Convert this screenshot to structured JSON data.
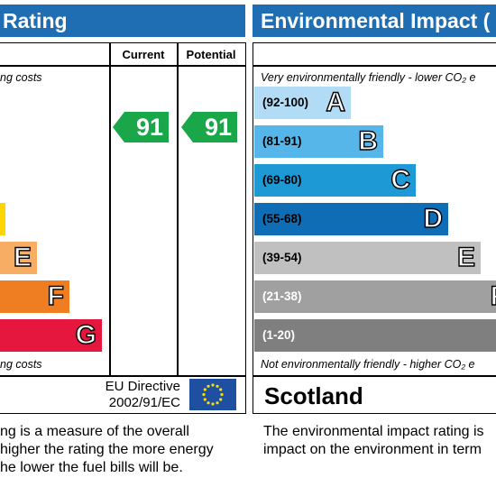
{
  "energy": {
    "title_fragment": "Rating",
    "col_current": "Current",
    "col_potential": "Potential",
    "top_note": "ng costs",
    "bottom_note": "ng costs",
    "bands": [
      {
        "letter": "",
        "color": "#ffd500"
      },
      {
        "letter": "E",
        "color": "#f7ad63"
      },
      {
        "letter": "F",
        "color": "#ef7d22"
      },
      {
        "letter": "G",
        "color": "#e5173f"
      }
    ],
    "current_value": "91",
    "potential_value": "91",
    "score_color": "#1aa74a",
    "directive_line1": "EU Directive",
    "directive_line2": "2002/91/EC",
    "eu_flag": "eu-flag-icon",
    "description": [
      "ng is a measure of the overall",
      "higher the rating the more energy",
      "he lower the fuel bills will be."
    ]
  },
  "environment": {
    "title": "Environmental Impact (",
    "top_note": "Very environmentally friendly - lower CO₂ e",
    "bottom_note": "Not environmentally friendly - higher CO₂ e",
    "bands": [
      {
        "range": "(92-100)",
        "letter": "A",
        "color": "#b2dcf5"
      },
      {
        "range": "(81-91)",
        "letter": "B",
        "color": "#56b6e9"
      },
      {
        "range": "(69-80)",
        "letter": "C",
        "color": "#1d9ad6"
      },
      {
        "range": "(55-68)",
        "letter": "D",
        "color": "#0f6db6"
      },
      {
        "range": "(39-54)",
        "letter": "E",
        "color": "#c0c0c0"
      },
      {
        "range": "(21-38)",
        "letter": "F",
        "color": "#a0a0a0"
      },
      {
        "range": "(1-20)",
        "letter": "",
        "color": "#7f7f7f"
      }
    ],
    "country": "Scotland",
    "description": [
      "The environmental impact rating is",
      "impact on the environment in term"
    ]
  }
}
